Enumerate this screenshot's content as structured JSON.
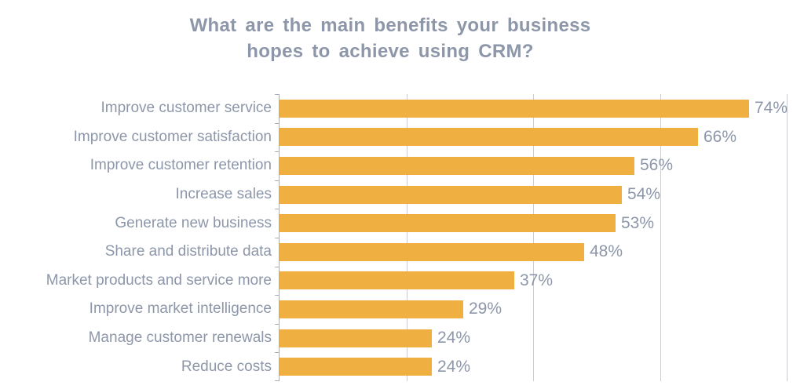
{
  "title": {
    "line1": "What are the main benefits your business",
    "line2": "hopes to achieve using CRM?"
  },
  "chart_data": {
    "type": "bar",
    "orientation": "horizontal",
    "title": "What are the main benefits your business hopes to achieve using CRM?",
    "categories": [
      "Improve customer service",
      "Improve customer satisfaction",
      "Improve customer retention",
      "Increase sales",
      "Generate new business",
      "Share and distribute data",
      "Market products and service more",
      "Improve market intelligence",
      "Manage customer renewals",
      "Reduce costs"
    ],
    "values": [
      74,
      66,
      56,
      54,
      53,
      48,
      37,
      29,
      24,
      24
    ],
    "value_suffix": "%",
    "xlabel": "",
    "ylabel": "",
    "xlim": [
      0,
      80
    ],
    "gridlines_percent": [
      20,
      40,
      60,
      80
    ],
    "grid": "vertical-on",
    "legend": "none",
    "data_labels": "outside-end",
    "bar_color": "#F0B041",
    "label_color": "#8D97A9",
    "gridline_color": "#C9CDD3",
    "axis_color": "#A9AEB5"
  }
}
